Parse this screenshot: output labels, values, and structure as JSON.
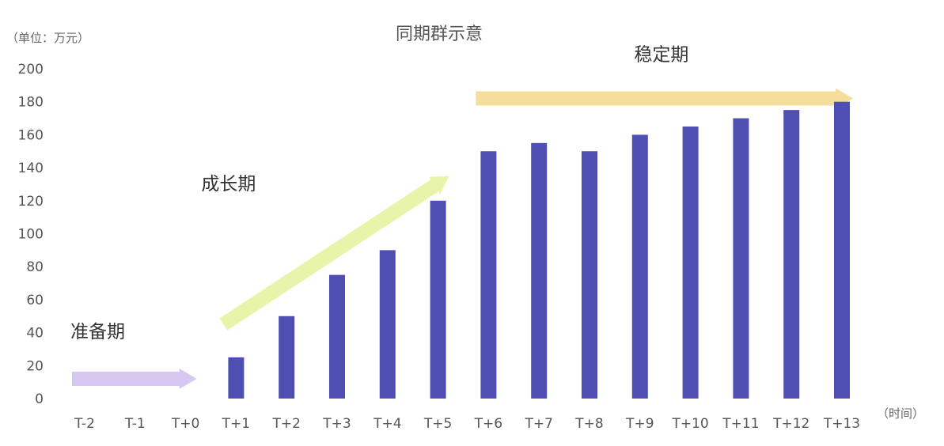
{
  "chart_data": {
    "type": "bar",
    "title": "同期群示意",
    "y_unit_label": "（单位：万元）",
    "x_unit_label": "（时间）",
    "categories": [
      "T-2",
      "T-1",
      "T+0",
      "T+1",
      "T+2",
      "T+3",
      "T+4",
      "T+5",
      "T+6",
      "T+7",
      "T+8",
      "T+9",
      "T+10",
      "T+11",
      "T+12",
      "T+13"
    ],
    "values": [
      0,
      0,
      0,
      25,
      50,
      75,
      90,
      120,
      150,
      155,
      150,
      160,
      165,
      170,
      175,
      180
    ],
    "ylim": [
      0,
      200
    ],
    "yticks": [
      "0",
      "20",
      "40",
      "60",
      "80",
      "100",
      "120",
      "140",
      "160",
      "180",
      "200"
    ],
    "grid": false,
    "bar_color": "#4f4fb3",
    "phases": [
      {
        "label": "准备期",
        "color": "#d4c2f0",
        "from_category": "T-2",
        "to_category": "T+0",
        "start_value": 12,
        "end_value": 12
      },
      {
        "label": "成长期",
        "color": "#e6f3a0",
        "from_category": "T+1",
        "to_category": "T+5",
        "start_value": 45,
        "end_value": 135
      },
      {
        "label": "稳定期",
        "color": "#f4d990",
        "from_category": "T+6",
        "to_category": "T+13",
        "start_value": 182,
        "end_value": 182
      }
    ]
  }
}
